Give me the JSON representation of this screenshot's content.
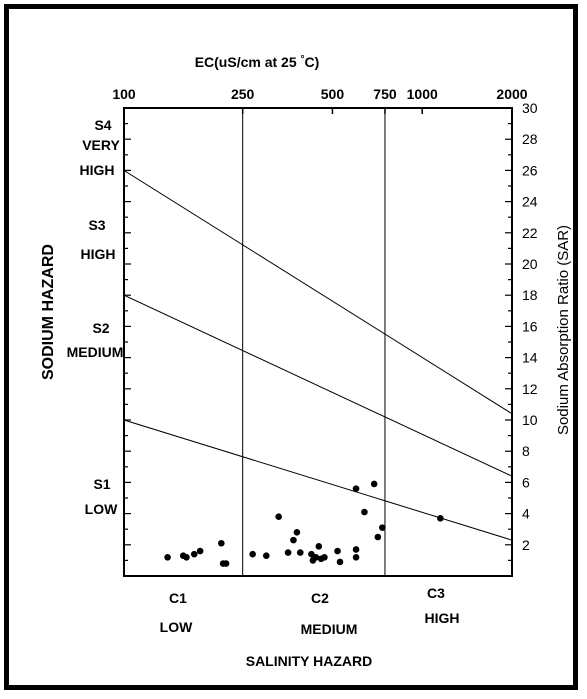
{
  "chart_data": {
    "type": "scatter",
    "title": "",
    "top_axis": {
      "label": "EC(uS/cm at 25°C)",
      "scale": "log",
      "range": [
        100,
        2000
      ],
      "ticks": [
        "100",
        "250",
        "500",
        "750",
        "1000",
        "2000"
      ],
      "tick_values": [
        100,
        250,
        500,
        750,
        1000,
        2000
      ]
    },
    "right_axis": {
      "label": "Sodium Absorption Ratio (SAR)",
      "range": [
        0,
        30
      ],
      "ticks": [
        "2",
        "4",
        "6",
        "8",
        "10",
        "12",
        "14",
        "16",
        "18",
        "20",
        "22",
        "24",
        "26",
        "28",
        "30"
      ],
      "tick_values": [
        2,
        4,
        6,
        8,
        10,
        12,
        14,
        16,
        18,
        20,
        22,
        24,
        26,
        28,
        30
      ]
    },
    "left_axis_title": "SODIUM HAZARD",
    "bottom_axis_title": "SALINITY HAZARD",
    "sodium_classes": [
      {
        "code": "S4",
        "name": "VERY",
        "name2": "HIGH"
      },
      {
        "code": "S3",
        "name": "HIGH"
      },
      {
        "code": "S2",
        "name": "MEDIUM"
      },
      {
        "code": "S1",
        "name": "LOW"
      }
    ],
    "salinity_classes": [
      {
        "code": "C1",
        "name": "LOW"
      },
      {
        "code": "C2",
        "name": "MEDIUM"
      },
      {
        "code": "C3",
        "name": "HIGH"
      }
    ],
    "class_boundaries_ec": [
      250,
      750
    ],
    "hazard_lines": [
      {
        "name": "S3/S4",
        "from": [
          100,
          26
        ],
        "to": [
          2000,
          10.4
        ]
      },
      {
        "name": "S2/S3",
        "from": [
          100,
          18
        ],
        "to": [
          2000,
          6.4
        ]
      },
      {
        "name": "S1/S2",
        "from": [
          100,
          10
        ],
        "to": [
          2000,
          2.3
        ]
      }
    ],
    "points": [
      {
        "ec": 140,
        "sar": 1.2
      },
      {
        "ec": 158,
        "sar": 1.3
      },
      {
        "ec": 162,
        "sar": 1.2
      },
      {
        "ec": 172,
        "sar": 1.4
      },
      {
        "ec": 180,
        "sar": 1.6
      },
      {
        "ec": 212,
        "sar": 2.1
      },
      {
        "ec": 215,
        "sar": 0.8
      },
      {
        "ec": 220,
        "sar": 0.8
      },
      {
        "ec": 270,
        "sar": 1.4
      },
      {
        "ec": 300,
        "sar": 1.3
      },
      {
        "ec": 330,
        "sar": 3.8
      },
      {
        "ec": 355,
        "sar": 1.5
      },
      {
        "ec": 370,
        "sar": 2.3
      },
      {
        "ec": 380,
        "sar": 2.8
      },
      {
        "ec": 390,
        "sar": 1.5
      },
      {
        "ec": 425,
        "sar": 1.4
      },
      {
        "ec": 430,
        "sar": 1.0
      },
      {
        "ec": 440,
        "sar": 1.2
      },
      {
        "ec": 450,
        "sar": 1.9
      },
      {
        "ec": 458,
        "sar": 1.1
      },
      {
        "ec": 470,
        "sar": 1.2
      },
      {
        "ec": 520,
        "sar": 1.6
      },
      {
        "ec": 530,
        "sar": 0.9
      },
      {
        "ec": 600,
        "sar": 1.7
      },
      {
        "ec": 600,
        "sar": 1.2
      },
      {
        "ec": 600,
        "sar": 5.6
      },
      {
        "ec": 640,
        "sar": 4.1
      },
      {
        "ec": 690,
        "sar": 5.9
      },
      {
        "ec": 710,
        "sar": 2.5
      },
      {
        "ec": 735,
        "sar": 3.1
      },
      {
        "ec": 1150,
        "sar": 3.7
      }
    ]
  }
}
